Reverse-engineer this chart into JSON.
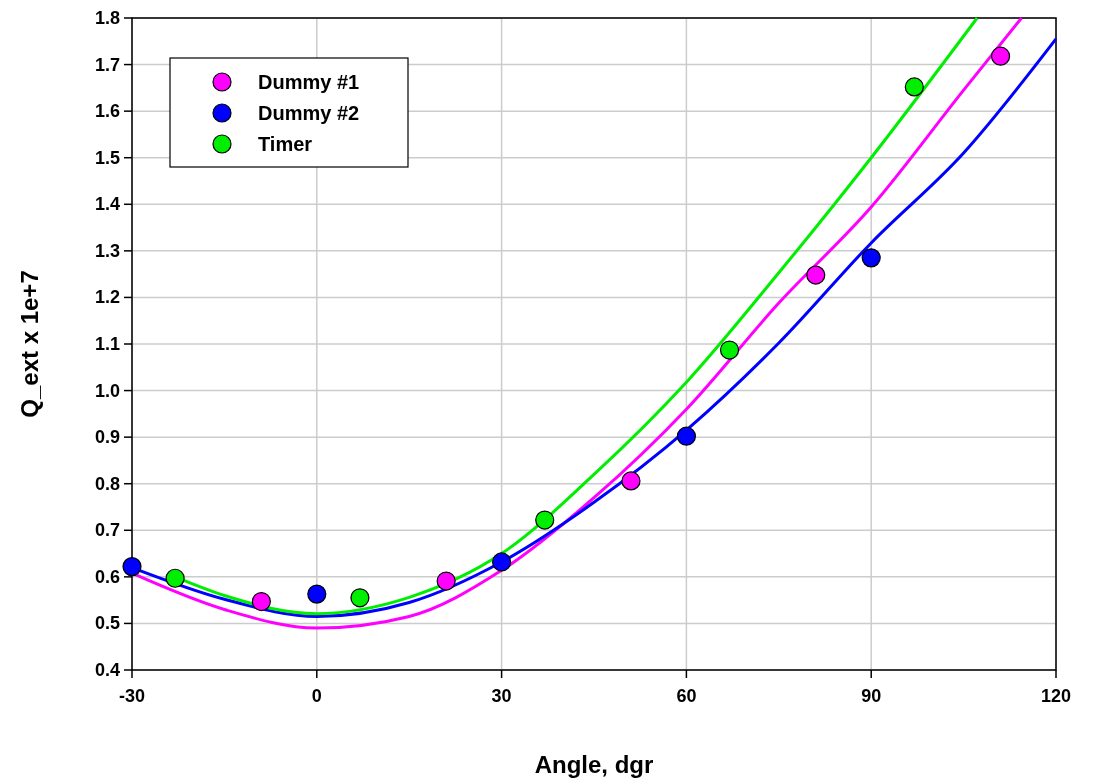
{
  "chart_data": {
    "type": "scatter",
    "xlabel": "Angle, dgr",
    "ylabel": "Q_ext x 1e+7",
    "xlim": [
      -30,
      120
    ],
    "xticks": [
      -30,
      0,
      30,
      60,
      90,
      120
    ],
    "ylim": [
      0.4,
      1.8
    ],
    "yticks": [
      {
        "value": 0.4,
        "label": "0.4"
      },
      {
        "value": 0.5,
        "label": "0.5"
      },
      {
        "value": 0.6,
        "label": "0.6"
      },
      {
        "value": 0.7,
        "label": "0.7"
      },
      {
        "value": 0.8,
        "label": "0.8"
      },
      {
        "value": 0.9,
        "label": "0.9"
      },
      {
        "value": 1.0,
        "label": "1.0"
      },
      {
        "value": 1.1,
        "label": "1.1"
      },
      {
        "value": 1.2,
        "label": "1.2"
      },
      {
        "value": 1.3,
        "label": "1.3"
      },
      {
        "value": 1.4,
        "label": "1.4"
      },
      {
        "value": 1.5,
        "label": "1.5"
      },
      {
        "value": 1.6,
        "label": "1.6"
      },
      {
        "value": 1.7,
        "label": "1.7"
      },
      {
        "value": 1.8,
        "label": "1.8"
      }
    ],
    "grid": true,
    "legend": "top left",
    "marker": "circle",
    "series": [
      {
        "type": "line",
        "marker": "none",
        "color": "#ff00ff",
        "x": [
          -30,
          -15,
          0,
          15,
          30,
          45,
          60,
          75,
          90,
          105,
          114.4
        ],
        "values": [
          0.608,
          0.53,
          0.49,
          0.515,
          0.614,
          0.77,
          0.96,
          1.188,
          1.394,
          1.645,
          1.8
        ]
      },
      {
        "type": "line",
        "marker": "none",
        "color": "#0000ff",
        "x": [
          -30,
          -15,
          0,
          15,
          30,
          45,
          60,
          75,
          90,
          105,
          120
        ],
        "values": [
          0.62,
          0.552,
          0.515,
          0.545,
          0.632,
          0.76,
          0.915,
          1.102,
          1.317,
          1.51,
          1.755
        ]
      },
      {
        "type": "line",
        "marker": "none",
        "color": "#00ee00",
        "x": [
          -23,
          -15,
          0,
          15,
          30,
          45,
          60,
          75,
          90,
          107.2
        ],
        "values": [
          0.6,
          0.56,
          0.521,
          0.556,
          0.65,
          0.82,
          1.018,
          1.253,
          1.5,
          1.8
        ]
      },
      {
        "name": "Dummy #1",
        "color": "#ff00ff",
        "x": [
          -9,
          21,
          51,
          81,
          111
        ],
        "values": [
          0.547,
          0.591,
          0.806,
          1.248,
          1.718
        ]
      },
      {
        "name": "Dummy #2",
        "color": "#0000ff",
        "x": [
          -30,
          0,
          30,
          60,
          90
        ],
        "values": [
          0.622,
          0.563,
          0.632,
          0.902,
          1.285
        ]
      },
      {
        "name": "Timer",
        "color": "#00ee00",
        "x": [
          -23,
          7,
          37,
          67,
          97
        ],
        "values": [
          0.597,
          0.555,
          0.722,
          1.087,
          1.652
        ]
      }
    ]
  }
}
